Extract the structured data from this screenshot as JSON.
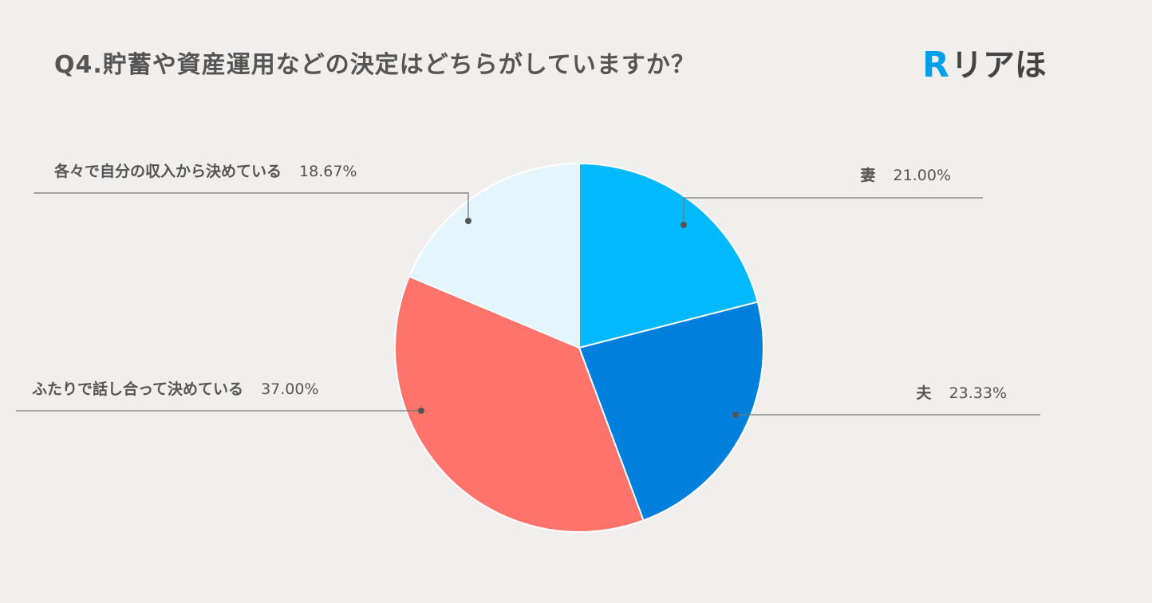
{
  "title": "Q4.貯蓄や資産運用などの決定はどちらがしていますか？",
  "logo": {
    "mark": "R",
    "text": "リアほ"
  },
  "colors": {
    "background": "#f0efee",
    "text": "#555555",
    "leader_line": "#777777",
    "slice_wife": "#00b9ff",
    "slice_husband": "#0080dd",
    "slice_together": "#ff736a",
    "slice_separate": "#e3f5fd"
  },
  "chart_data": {
    "type": "pie",
    "start_angle_deg": 0,
    "direction": "clockwise",
    "slices": [
      {
        "label": "妻",
        "value": 21.0,
        "display": "21.00%",
        "color": "#00b9ff"
      },
      {
        "label": "夫",
        "value": 23.33,
        "display": "23.33%",
        "color": "#0080dd"
      },
      {
        "label": "ふたりで話し合って決めている",
        "value": 37.0,
        "display": "37.00%",
        "color": "#ff736a"
      },
      {
        "label": "各々で自分の収入から決めている",
        "value": 18.67,
        "display": "18.67%",
        "color": "#e3f5fd"
      }
    ]
  }
}
